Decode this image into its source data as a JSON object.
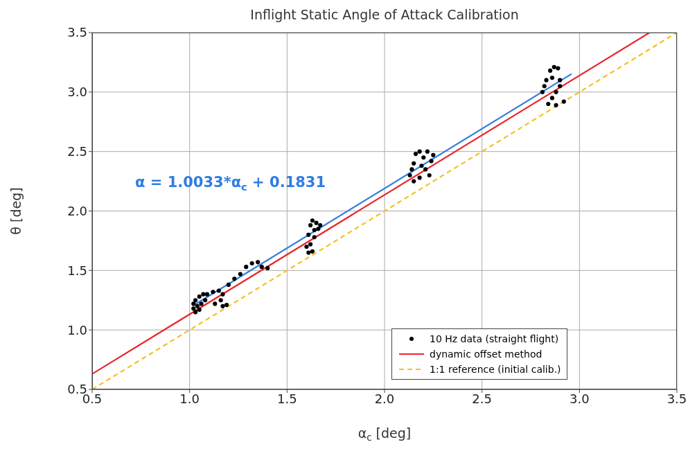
{
  "chart_data": {
    "type": "scatter",
    "title": "Inflight Static Angle of Attack Calibration",
    "xlabel": "α$_{c}$  [deg]",
    "ylabel": "θ [deg]",
    "xlim": [
      0.5,
      3.5
    ],
    "ylim": [
      0.5,
      3.5
    ],
    "xticks": [
      {
        "value": 0.5,
        "label": "0.5"
      },
      {
        "value": 1,
        "label": "1.0"
      },
      {
        "value": 1.5,
        "label": "1.5"
      },
      {
        "value": 2,
        "label": "2.0"
      },
      {
        "value": 2.5,
        "label": "2.5"
      },
      {
        "value": 3,
        "label": "3.0"
      },
      {
        "value": 3.5,
        "label": "3.5"
      }
    ],
    "yticks": [
      {
        "value": 0.5,
        "label": "0.5"
      },
      {
        "value": 1,
        "label": "1.0"
      },
      {
        "value": 1.5,
        "label": "1.5"
      },
      {
        "value": 2,
        "label": "2.0"
      },
      {
        "value": 2.5,
        "label": "2.5"
      },
      {
        "value": 3,
        "label": "3.0"
      },
      {
        "value": 3.5,
        "label": "3.5"
      }
    ],
    "grid": true,
    "legend": "bottom right",
    "annotations": [
      "α = 1.0033*α$_{c}$ + 0.1831"
    ],
    "series": [
      {
        "name": "10 Hz data (straight flight)",
        "type": "scatter",
        "marker": "circle",
        "color": "#000000",
        "x": [
          1.02,
          1.03,
          1.04,
          1.05,
          1.06,
          1.07,
          1.03,
          1.05,
          1.08,
          1.02,
          1.09,
          1.12,
          1.15,
          1.17,
          1.16,
          1.17,
          1.19,
          1.13,
          1.2,
          1.23,
          1.26,
          1.29,
          1.32,
          1.35,
          1.37,
          1.4,
          1.6,
          1.61,
          1.62,
          1.63,
          1.65,
          1.66,
          1.64,
          1.62,
          1.63,
          1.61,
          1.67,
          1.64,
          2.13,
          2.15,
          2.16,
          2.18,
          2.2,
          2.22,
          2.24,
          2.21,
          2.18,
          2.15,
          2.19,
          2.23,
          2.14,
          2.25,
          2.81,
          2.83,
          2.85,
          2.87,
          2.89,
          2.9,
          2.88,
          2.86,
          2.84,
          2.88,
          2.92,
          2.9,
          2.82,
          2.86
        ],
        "values": [
          1.18,
          1.25,
          1.2,
          1.28,
          1.22,
          1.3,
          1.15,
          1.17,
          1.25,
          1.22,
          1.3,
          1.32,
          1.33,
          1.3,
          1.25,
          1.2,
          1.21,
          1.22,
          1.38,
          1.43,
          1.47,
          1.53,
          1.56,
          1.57,
          1.53,
          1.52,
          1.7,
          1.8,
          1.88,
          1.92,
          1.9,
          1.85,
          1.78,
          1.72,
          1.66,
          1.65,
          1.88,
          1.84,
          2.3,
          2.4,
          2.48,
          2.5,
          2.45,
          2.5,
          2.42,
          2.35,
          2.28,
          2.25,
          2.38,
          2.3,
          2.35,
          2.47,
          3.0,
          3.1,
          3.18,
          3.21,
          3.2,
          3.1,
          3.0,
          2.95,
          2.9,
          2.89,
          2.92,
          3.05,
          3.05,
          3.12
        ]
      },
      {
        "name": "dynamic offset method",
        "type": "line",
        "line_style": "solid",
        "color": "#e8262a",
        "x": [
          0.5,
          3.36
        ],
        "values": [
          0.63,
          3.5
        ]
      },
      {
        "name": "1:1 reference (initial calib.)",
        "type": "line",
        "line_style": "dashed",
        "color": "#f5c020",
        "x": [
          0.5,
          3.5
        ],
        "values": [
          0.5,
          3.5
        ]
      },
      {
        "type": "line",
        "line_style": "solid",
        "color": "#2f7de1",
        "x": [
          1.02,
          2.96
        ],
        "values": [
          1.206,
          3.153
        ]
      }
    ]
  }
}
